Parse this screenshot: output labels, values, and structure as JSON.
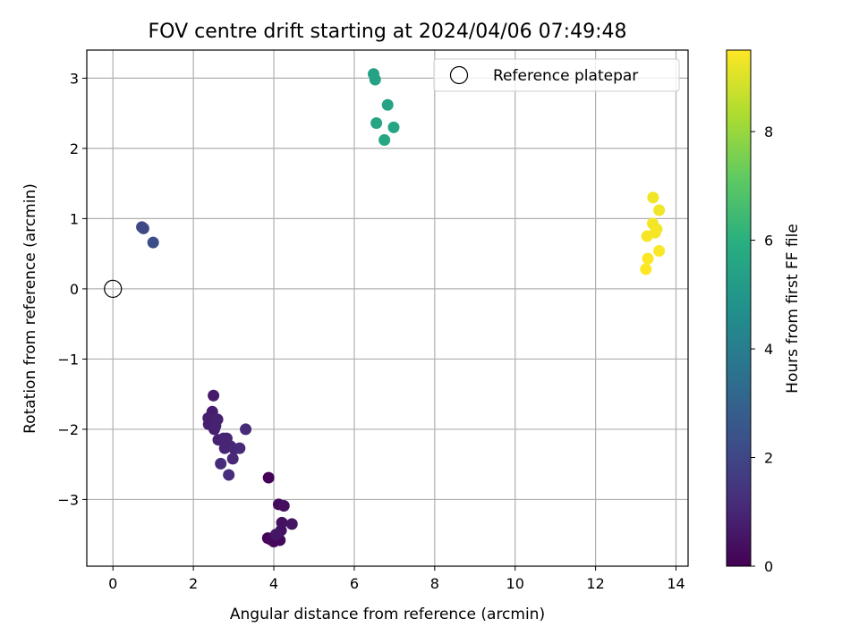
{
  "chart_data": {
    "type": "scatter",
    "title": "FOV centre drift starting at 2024/04/06 07:49:48",
    "xlabel": "Angular distance from reference (arcmin)",
    "ylabel": "Rotation from reference (arcmin)",
    "xlim": [
      -0.65,
      14.3
    ],
    "ylim": [
      -3.95,
      3.4
    ],
    "xticks": [
      0,
      2,
      4,
      6,
      8,
      10,
      12,
      14
    ],
    "yticks": [
      -3,
      -2,
      -1,
      0,
      1,
      2,
      3
    ],
    "xtick_labels": [
      "0",
      "2",
      "4",
      "6",
      "8",
      "10",
      "12",
      "14"
    ],
    "ytick_labels": [
      "−3",
      "−2",
      "−1",
      "0",
      "1",
      "2",
      "3"
    ],
    "grid": true,
    "legend": {
      "position": "upper-right",
      "label": "Reference platepar",
      "marker": "open-circle"
    },
    "reference_point": {
      "x": 0,
      "y": 0
    },
    "colorbar": {
      "label": "Hours from first FF file",
      "colormap": "viridis",
      "range": [
        0,
        9.5
      ],
      "ticks": [
        0,
        2,
        4,
        6,
        8
      ],
      "tick_labels": [
        "0",
        "2",
        "4",
        "6",
        "8"
      ]
    },
    "points": [
      {
        "x": 3.87,
        "y": -2.69,
        "c": 0.05
      },
      {
        "x": 3.85,
        "y": -3.55,
        "c": 0.1
      },
      {
        "x": 3.92,
        "y": -3.57,
        "c": 0.15
      },
      {
        "x": 4.0,
        "y": -3.6,
        "c": 0.2
      },
      {
        "x": 4.15,
        "y": -3.58,
        "c": 0.25
      },
      {
        "x": 4.12,
        "y": -3.07,
        "c": 0.3
      },
      {
        "x": 4.25,
        "y": -3.09,
        "c": 0.35
      },
      {
        "x": 4.2,
        "y": -3.33,
        "c": 0.4
      },
      {
        "x": 4.18,
        "y": -3.44,
        "c": 0.45
      },
      {
        "x": 4.45,
        "y": -3.35,
        "c": 0.5
      },
      {
        "x": 4.05,
        "y": -3.5,
        "c": 0.55
      },
      {
        "x": 2.5,
        "y": -1.52,
        "c": 0.7
      },
      {
        "x": 2.47,
        "y": -1.75,
        "c": 0.75
      },
      {
        "x": 2.37,
        "y": -1.84,
        "c": 0.8
      },
      {
        "x": 2.38,
        "y": -1.93,
        "c": 0.82
      },
      {
        "x": 2.52,
        "y": -2.0,
        "c": 0.85
      },
      {
        "x": 2.6,
        "y": -1.86,
        "c": 0.88
      },
      {
        "x": 2.62,
        "y": -2.15,
        "c": 0.9
      },
      {
        "x": 2.55,
        "y": -1.95,
        "c": 0.92
      },
      {
        "x": 2.75,
        "y": -2.13,
        "c": 0.95
      },
      {
        "x": 2.83,
        "y": -2.13,
        "c": 0.97
      },
      {
        "x": 2.78,
        "y": -2.27,
        "c": 1.0
      },
      {
        "x": 2.92,
        "y": -2.24,
        "c": 1.02
      },
      {
        "x": 3.02,
        "y": -2.28,
        "c": 1.05
      },
      {
        "x": 2.98,
        "y": -2.42,
        "c": 1.08
      },
      {
        "x": 3.15,
        "y": -2.27,
        "c": 1.1
      },
      {
        "x": 3.3,
        "y": -2.0,
        "c": 1.12
      },
      {
        "x": 2.68,
        "y": -2.49,
        "c": 1.15
      },
      {
        "x": 2.88,
        "y": -2.65,
        "c": 1.2
      },
      {
        "x": 0.72,
        "y": 0.88,
        "c": 2.05
      },
      {
        "x": 0.76,
        "y": 0.86,
        "c": 2.1
      },
      {
        "x": 1.0,
        "y": 0.66,
        "c": 2.25
      },
      {
        "x": 6.48,
        "y": 3.06,
        "c": 5.4
      },
      {
        "x": 6.52,
        "y": 2.98,
        "c": 5.45
      },
      {
        "x": 6.83,
        "y": 2.62,
        "c": 5.5
      },
      {
        "x": 6.55,
        "y": 2.36,
        "c": 5.52
      },
      {
        "x": 6.98,
        "y": 2.3,
        "c": 5.55
      },
      {
        "x": 6.75,
        "y": 2.12,
        "c": 5.6
      },
      {
        "x": 13.43,
        "y": 1.3,
        "c": 9.3
      },
      {
        "x": 13.58,
        "y": 1.12,
        "c": 9.32
      },
      {
        "x": 13.42,
        "y": 0.93,
        "c": 9.35
      },
      {
        "x": 13.52,
        "y": 0.85,
        "c": 9.37
      },
      {
        "x": 13.48,
        "y": 0.8,
        "c": 9.4
      },
      {
        "x": 13.28,
        "y": 0.75,
        "c": 9.42
      },
      {
        "x": 13.58,
        "y": 0.54,
        "c": 9.45
      },
      {
        "x": 13.3,
        "y": 0.43,
        "c": 9.47
      },
      {
        "x": 13.25,
        "y": 0.28,
        "c": 9.5
      }
    ]
  }
}
